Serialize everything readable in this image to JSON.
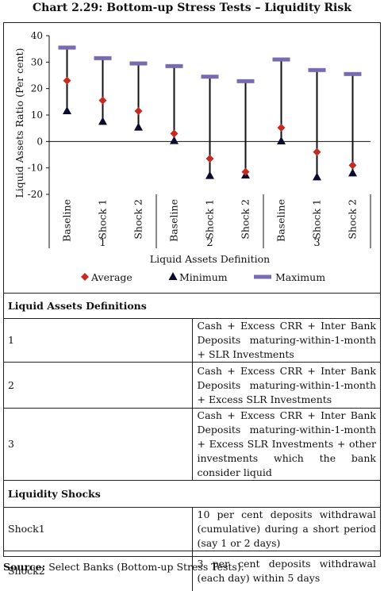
{
  "title": "Chart 2.29: Bottom-up Stress Tests – Liquidity Risk",
  "chart_data": {
    "type": "scatter",
    "ylabel": "Liquid Assets Ratio (Per cent)",
    "xlabel": "Liquid Assets Definition",
    "ylim": [
      -20,
      40
    ],
    "yticks": [
      -20,
      -10,
      0,
      10,
      20,
      30,
      40
    ],
    "categories": [
      "Baseline",
      "Shock 1",
      "Shock 2",
      "Baseline",
      "Shock 1",
      "Shock 2",
      "Baseline",
      "Shock 1",
      "Shock 2"
    ],
    "groups": [
      "1",
      "2",
      "3"
    ],
    "series": [
      {
        "name": "Average",
        "values": [
          23,
          15.5,
          11.5,
          3,
          -6.5,
          -11.5,
          5.2,
          -4,
          -9
        ],
        "color": "#c62a21",
        "marker": "diamond"
      },
      {
        "name": "Minimum",
        "values": [
          11.5,
          7.5,
          5.3,
          0.2,
          -13,
          -12.8,
          0.1,
          -13.5,
          -12
        ],
        "color": "#0b0b2e",
        "marker": "triangle"
      },
      {
        "name": "Maximum",
        "values": [
          35.5,
          31.5,
          29.5,
          28.5,
          24.5,
          22.8,
          31,
          27,
          25.5
        ],
        "color": "#7a6ab0",
        "marker": "dash"
      }
    ],
    "legend_position": "bottom",
    "grid": false
  },
  "table": {
    "definitions_header": "Liquid Assets Definitions",
    "definitions": [
      {
        "key": "1",
        "text": "Cash  + Excess CRR + Inter Bank Deposits maturing-within-1-month + SLR Investments"
      },
      {
        "key": "2",
        "text": "Cash + Excess CRR + Inter Bank Deposits maturing-within-1-month + Excess SLR Investments"
      },
      {
        "key": "3",
        "text": "Cash + Excess CRR + Inter Bank Deposits maturing-within-1-month + Excess SLR Investments + other investments which the bank consider liquid"
      }
    ],
    "shocks_header": "Liquidity Shocks",
    "shocks": [
      {
        "key": "Shock1",
        "text": "10 per cent deposits withdrawal (cumulative) during a short period (say 1 or 2 days)"
      },
      {
        "key": "Shock2",
        "text": "3 per cent deposits withdrawal (each day) within 5 days"
      }
    ]
  },
  "source": {
    "label": "Source:",
    "text": " Select Banks (Bottom-up Stress Tests)."
  }
}
